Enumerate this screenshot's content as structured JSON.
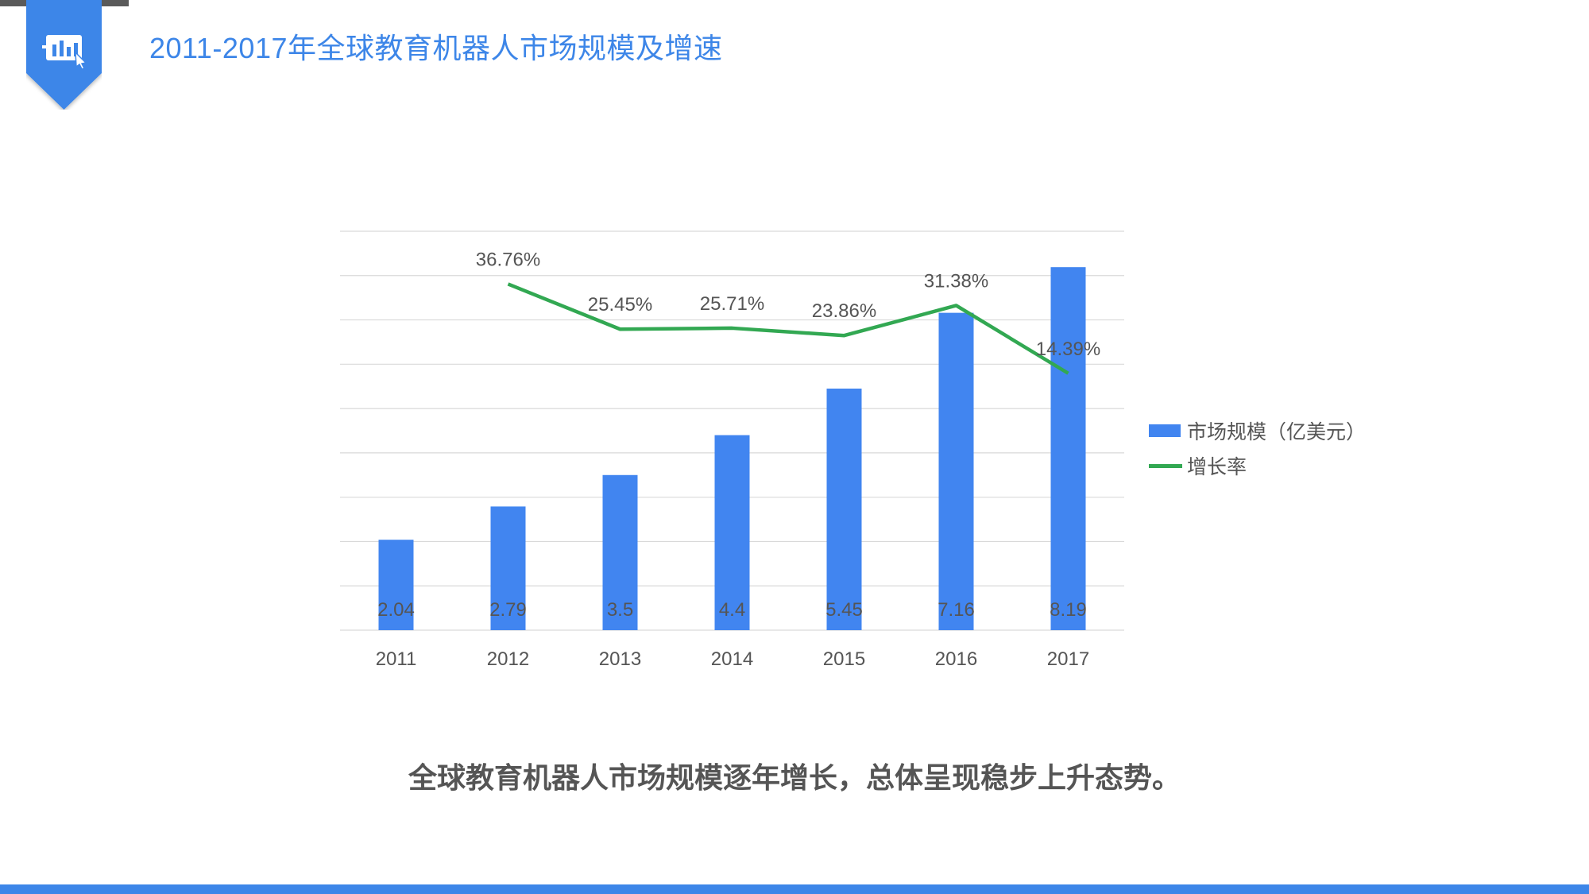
{
  "header": {
    "title": "2011-2017年全球教育机器人市场规模及增速",
    "icon": "chart-presentation-icon"
  },
  "colors": {
    "accent": "#3d86e8",
    "bar": "#4185f0",
    "line": "#32a852",
    "grid": "#d9d9d9",
    "text": "#555555",
    "strip": "#5a5a5a"
  },
  "chart_data": {
    "type": "bar",
    "categories": [
      "2011",
      "2012",
      "2013",
      "2014",
      "2015",
      "2016",
      "2017"
    ],
    "series": [
      {
        "name": "市场规模（亿美元）",
        "type": "bar",
        "values": [
          2.04,
          2.79,
          3.5,
          4.4,
          5.45,
          7.16,
          8.19
        ],
        "labels": [
          "2.04",
          "2.79",
          "3.5",
          "4.4",
          "5.45",
          "7.16",
          "8.19"
        ]
      },
      {
        "name": "增长率",
        "type": "line",
        "values": [
          null,
          36.76,
          25.45,
          25.71,
          23.86,
          31.38,
          14.39
        ],
        "labels": [
          "",
          "36.76%",
          "25.45%",
          "25.71%",
          "23.86%",
          "31.38%",
          "14.39%"
        ]
      }
    ],
    "ylim": [
      0,
      9
    ],
    "y2lim": [
      -50,
      50
    ],
    "grid": true,
    "legend_position": "right"
  },
  "summary": "全球教育机器人市场规模逐年增长，总体呈现稳步上升态势。"
}
